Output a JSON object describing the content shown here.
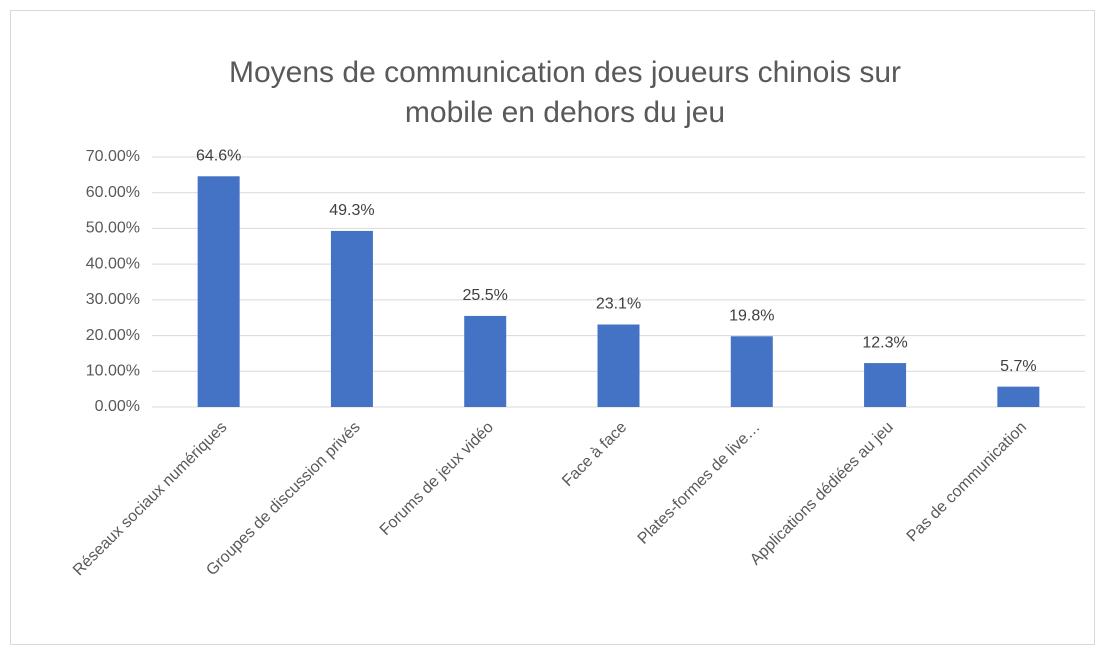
{
  "chart_data": {
    "type": "bar",
    "title": [
      "Moyens de communication des joueurs chinois sur",
      "mobile en dehors du jeu"
    ],
    "categories": [
      "Réseaux sociaux numériques",
      "Groupes de discussion privés",
      "Forums de jeux vidéo",
      "Face à face",
      "Plates-formes de live…",
      "Applications dédiées au jeu",
      "Pas de communication"
    ],
    "values": [
      64.6,
      49.3,
      25.5,
      23.1,
      19.8,
      12.3,
      5.7
    ],
    "value_labels": [
      "64.6%",
      "49.3%",
      "25.5%",
      "23.1%",
      "19.8%",
      "12.3%",
      "5.7%"
    ],
    "color": "#4472c4",
    "ylim": [
      0,
      70
    ],
    "yticks": [
      {
        "value": 0,
        "label": "0.00%"
      },
      {
        "value": 10,
        "label": "10.00%"
      },
      {
        "value": 20,
        "label": "20.00%"
      },
      {
        "value": 30,
        "label": "30.00%"
      },
      {
        "value": 40,
        "label": "40.00%"
      },
      {
        "value": 50,
        "label": "50.00%"
      },
      {
        "value": 60,
        "label": "60.00%"
      },
      {
        "value": 70,
        "label": "70.00%"
      }
    ],
    "grid": true
  }
}
